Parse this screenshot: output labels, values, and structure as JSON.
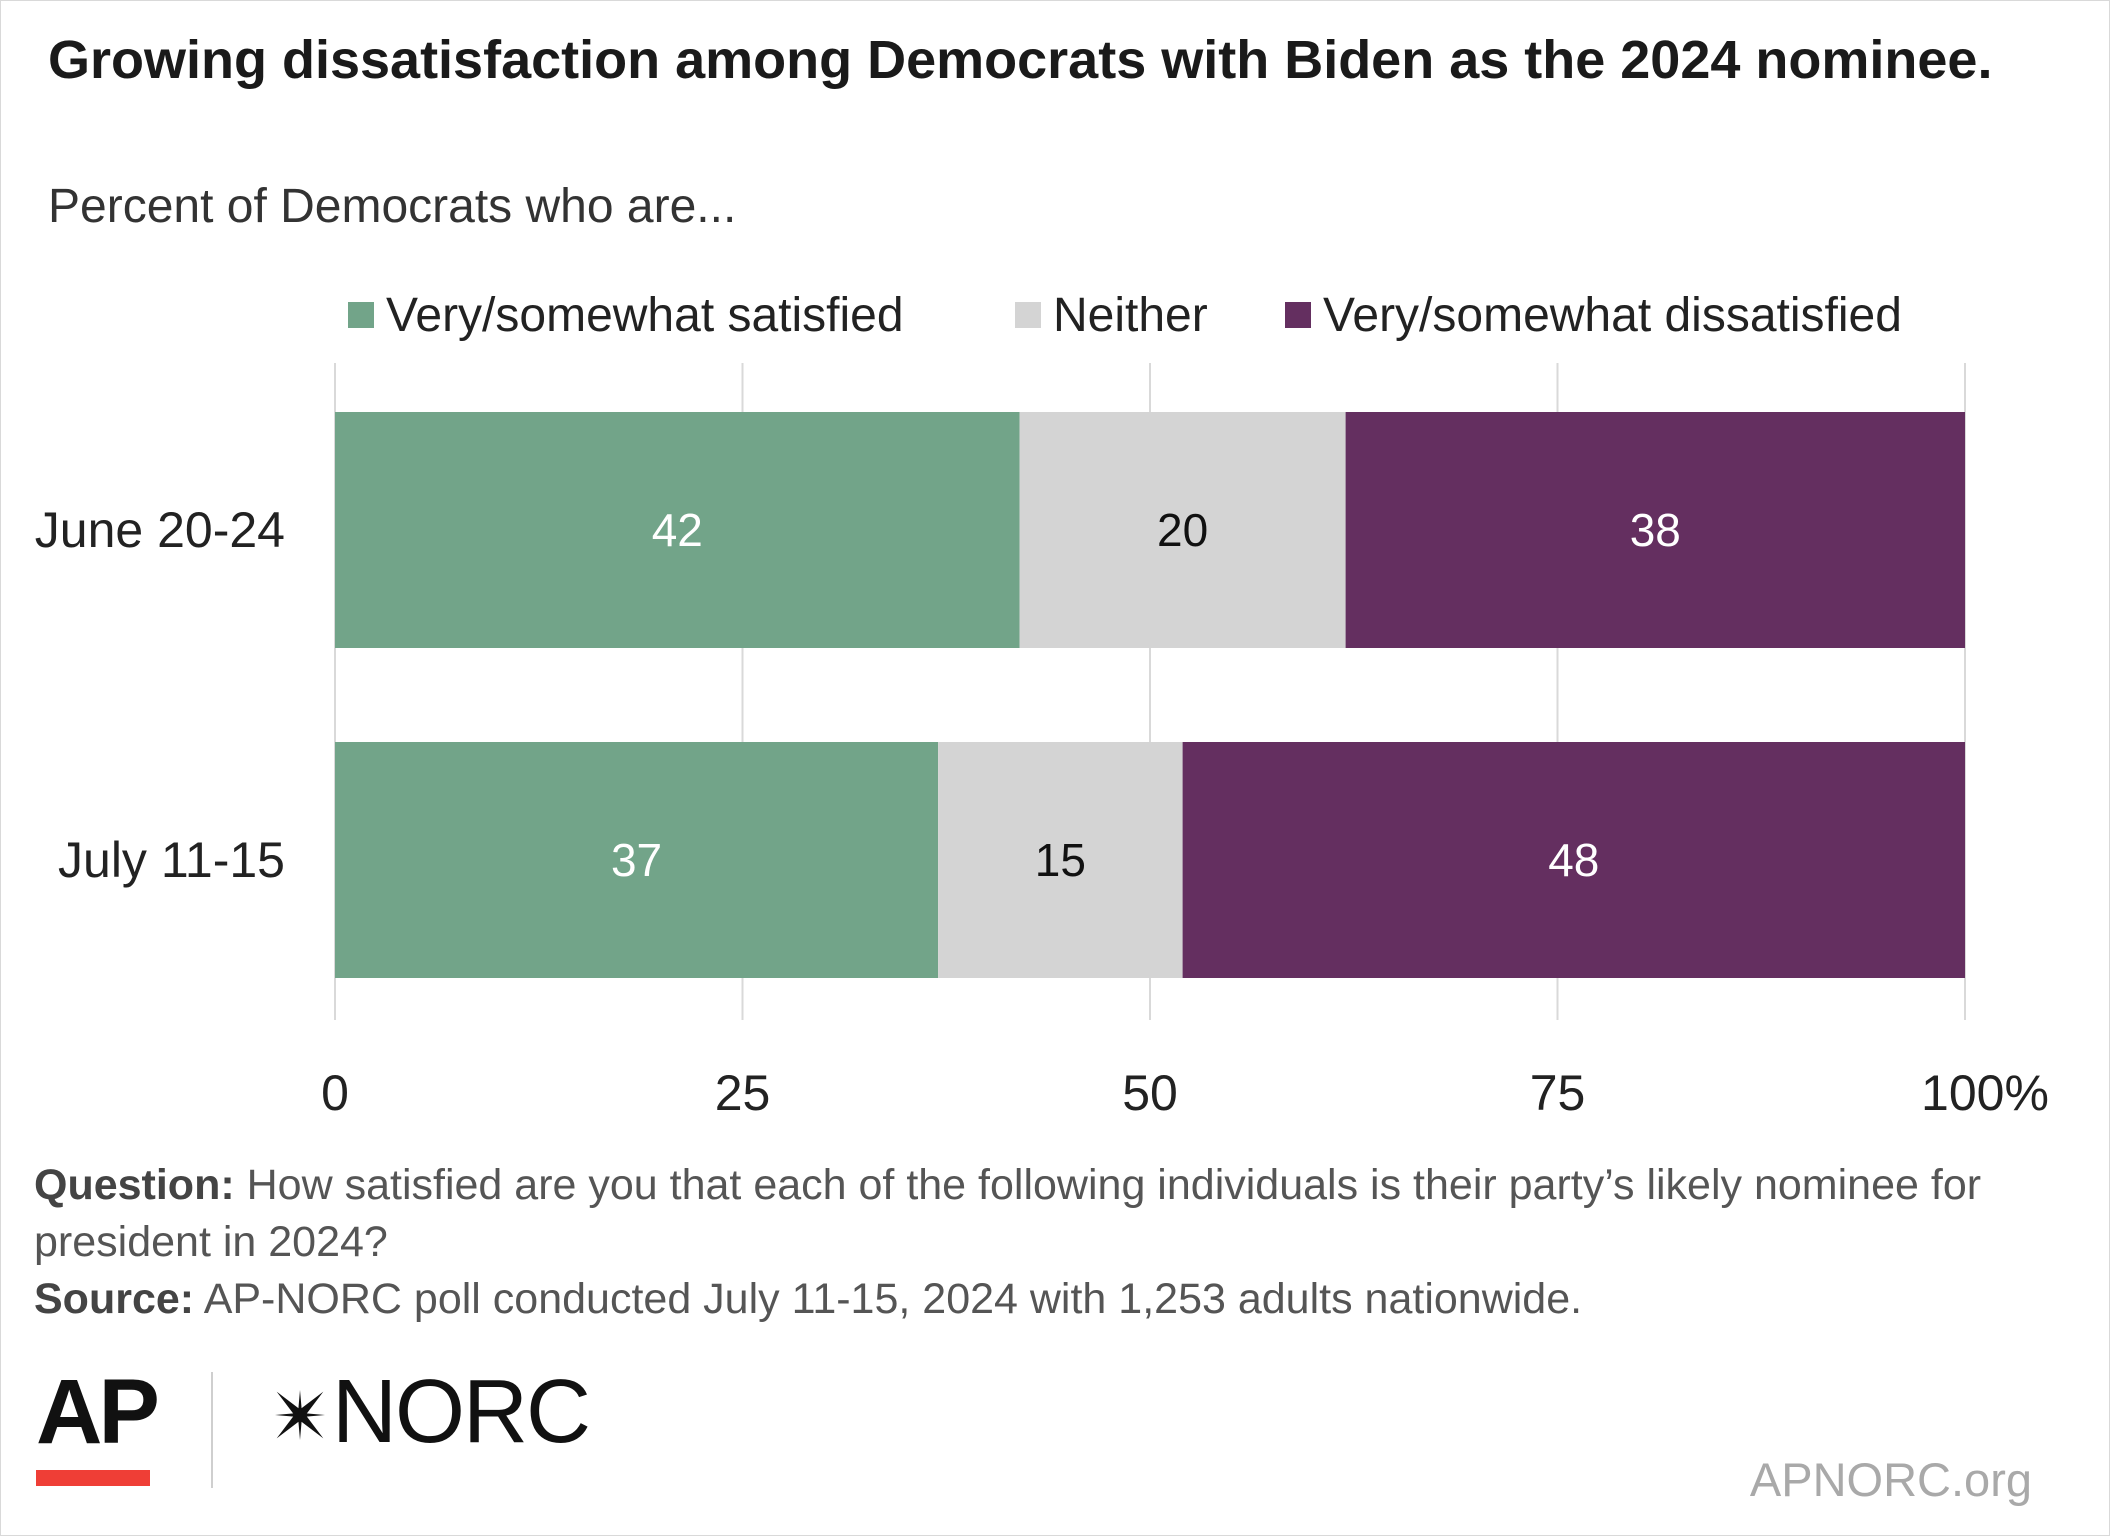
{
  "header": {
    "title": "Growing dissatisfaction among Democrats with Biden as the 2024 nominee.",
    "subtitle": "Percent of Democrats who are..."
  },
  "chart_data": {
    "type": "bar",
    "orientation": "horizontal",
    "stacked": true,
    "categories": [
      "June 20-24",
      "July 11-15"
    ],
    "series": [
      {
        "name": "Very/somewhat satisfied",
        "values": [
          42,
          37
        ],
        "color": "#72a489",
        "label_color": "#ffffff"
      },
      {
        "name": "Neither",
        "values": [
          20,
          15
        ],
        "color": "#d4d4d4",
        "label_color": "#111111"
      },
      {
        "name": "Very/somewhat dissatisfied",
        "values": [
          38,
          48
        ],
        "color": "#642f60",
        "label_color": "#ffffff"
      }
    ],
    "xlim": [
      0,
      100
    ],
    "x_ticks": [
      "0",
      "25",
      "50",
      "75",
      "100%"
    ],
    "x_tick_values": [
      0,
      25,
      50,
      75,
      100
    ],
    "grid": true,
    "legend_position": "top"
  },
  "footer": {
    "question_label": "Question:",
    "question_text": "How satisfied are you that each of the following individuals is their party’s likely nominee for president in 2024?",
    "source_label": "Source:",
    "source_text": "AP-NORC poll conducted July 11-15, 2024 with 1,253 adults nationwide."
  },
  "logos": {
    "ap": "AP",
    "norc": "NORC",
    "site": "APNORC.org"
  },
  "colors": {
    "grid": "#d9d9d9",
    "ap_red": "#ef3e36"
  }
}
